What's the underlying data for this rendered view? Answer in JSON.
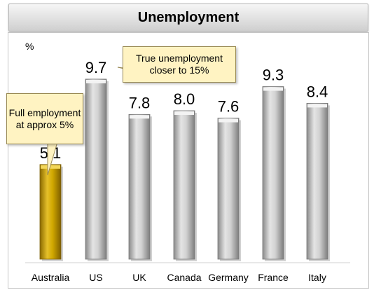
{
  "chart_data": {
    "type": "bar",
    "title": "Unemployment",
    "ylabel": "%",
    "xlabel": "",
    "categories": [
      "Australia",
      "US",
      "UK",
      "Canada",
      "Germany",
      "France",
      "Italy"
    ],
    "values": [
      5.1,
      9.7,
      7.8,
      8.0,
      7.6,
      9.3,
      8.4
    ],
    "value_labels": [
      "5.1",
      "9.7",
      "7.8",
      "8.0",
      "7.6",
      "9.3",
      "8.4"
    ],
    "highlight": "Australia",
    "grid": false,
    "legend": "none",
    "annotations": [
      {
        "target": "US",
        "text": "True unemployment closer to 15%"
      },
      {
        "target": "Australia",
        "text": "Full employment at approx 5%"
      }
    ]
  },
  "colors": {
    "highlight_bar": "#c9a000",
    "default_bar": "#bdbdbd",
    "callout_fill": "#fff3c2"
  }
}
